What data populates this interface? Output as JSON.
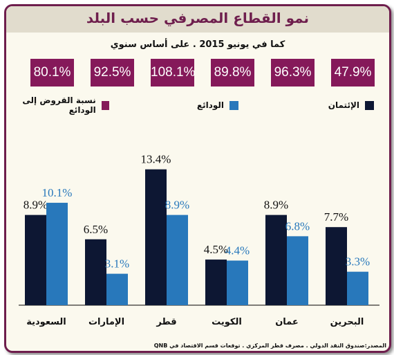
{
  "title": "نمو القطاع المصرفي حسب البلد",
  "subtitle": "كما في يونيو 2015 . على أساس سنوي",
  "source": "المصدر:صندوق النقد الدولي . مصرف قطر المركزي . توقعات قسم الاقتصاد في QNB",
  "colors": {
    "credit": "#0d1733",
    "deposits": "#2878bb",
    "ratio": "#85195a",
    "deposit_label": "#2878bb",
    "frame": "#6e1e4d"
  },
  "legend": [
    {
      "key": "credit",
      "label": "الإئتمان"
    },
    {
      "key": "deposits",
      "label": "الودائع"
    },
    {
      "key": "ratio",
      "label": "نسبة القروض إلى الودائع"
    }
  ],
  "chart_data": {
    "type": "bar",
    "title": "نمو القطاع المصرفي حسب البلد",
    "subtitle": "كما في يونيو 2015 . على أساس سنوي",
    "categories": [
      "السعودية",
      "الإمارات",
      "قطر",
      "الكويت",
      "عمان",
      "البحرين"
    ],
    "series": [
      {
        "name": "الإئتمان",
        "values": [
          8.9,
          6.5,
          13.4,
          4.5,
          8.9,
          7.7
        ],
        "labels": [
          "8.9%",
          "6.5%",
          "13.4%",
          "4.5%",
          "8.9%",
          "7.7%"
        ]
      },
      {
        "name": "الودائع",
        "values": [
          10.1,
          3.1,
          8.9,
          4.4,
          6.8,
          3.3
        ],
        "labels": [
          "10.1%",
          "3.1%",
          "8.9%",
          "4.4%",
          "6.8%",
          "3.3%"
        ]
      }
    ],
    "loan_to_deposit_ratio": {
      "name": "نسبة القروض إلى الودائع",
      "values": [
        80.1,
        92.5,
        108.1,
        89.8,
        96.3,
        47.9
      ],
      "labels": [
        "80.1%",
        "92.5%",
        "108.1%",
        "89.8%",
        "96.3%",
        "47.9%"
      ]
    },
    "ylim": [
      0,
      15
    ],
    "grid": false,
    "legend_position": "top"
  }
}
